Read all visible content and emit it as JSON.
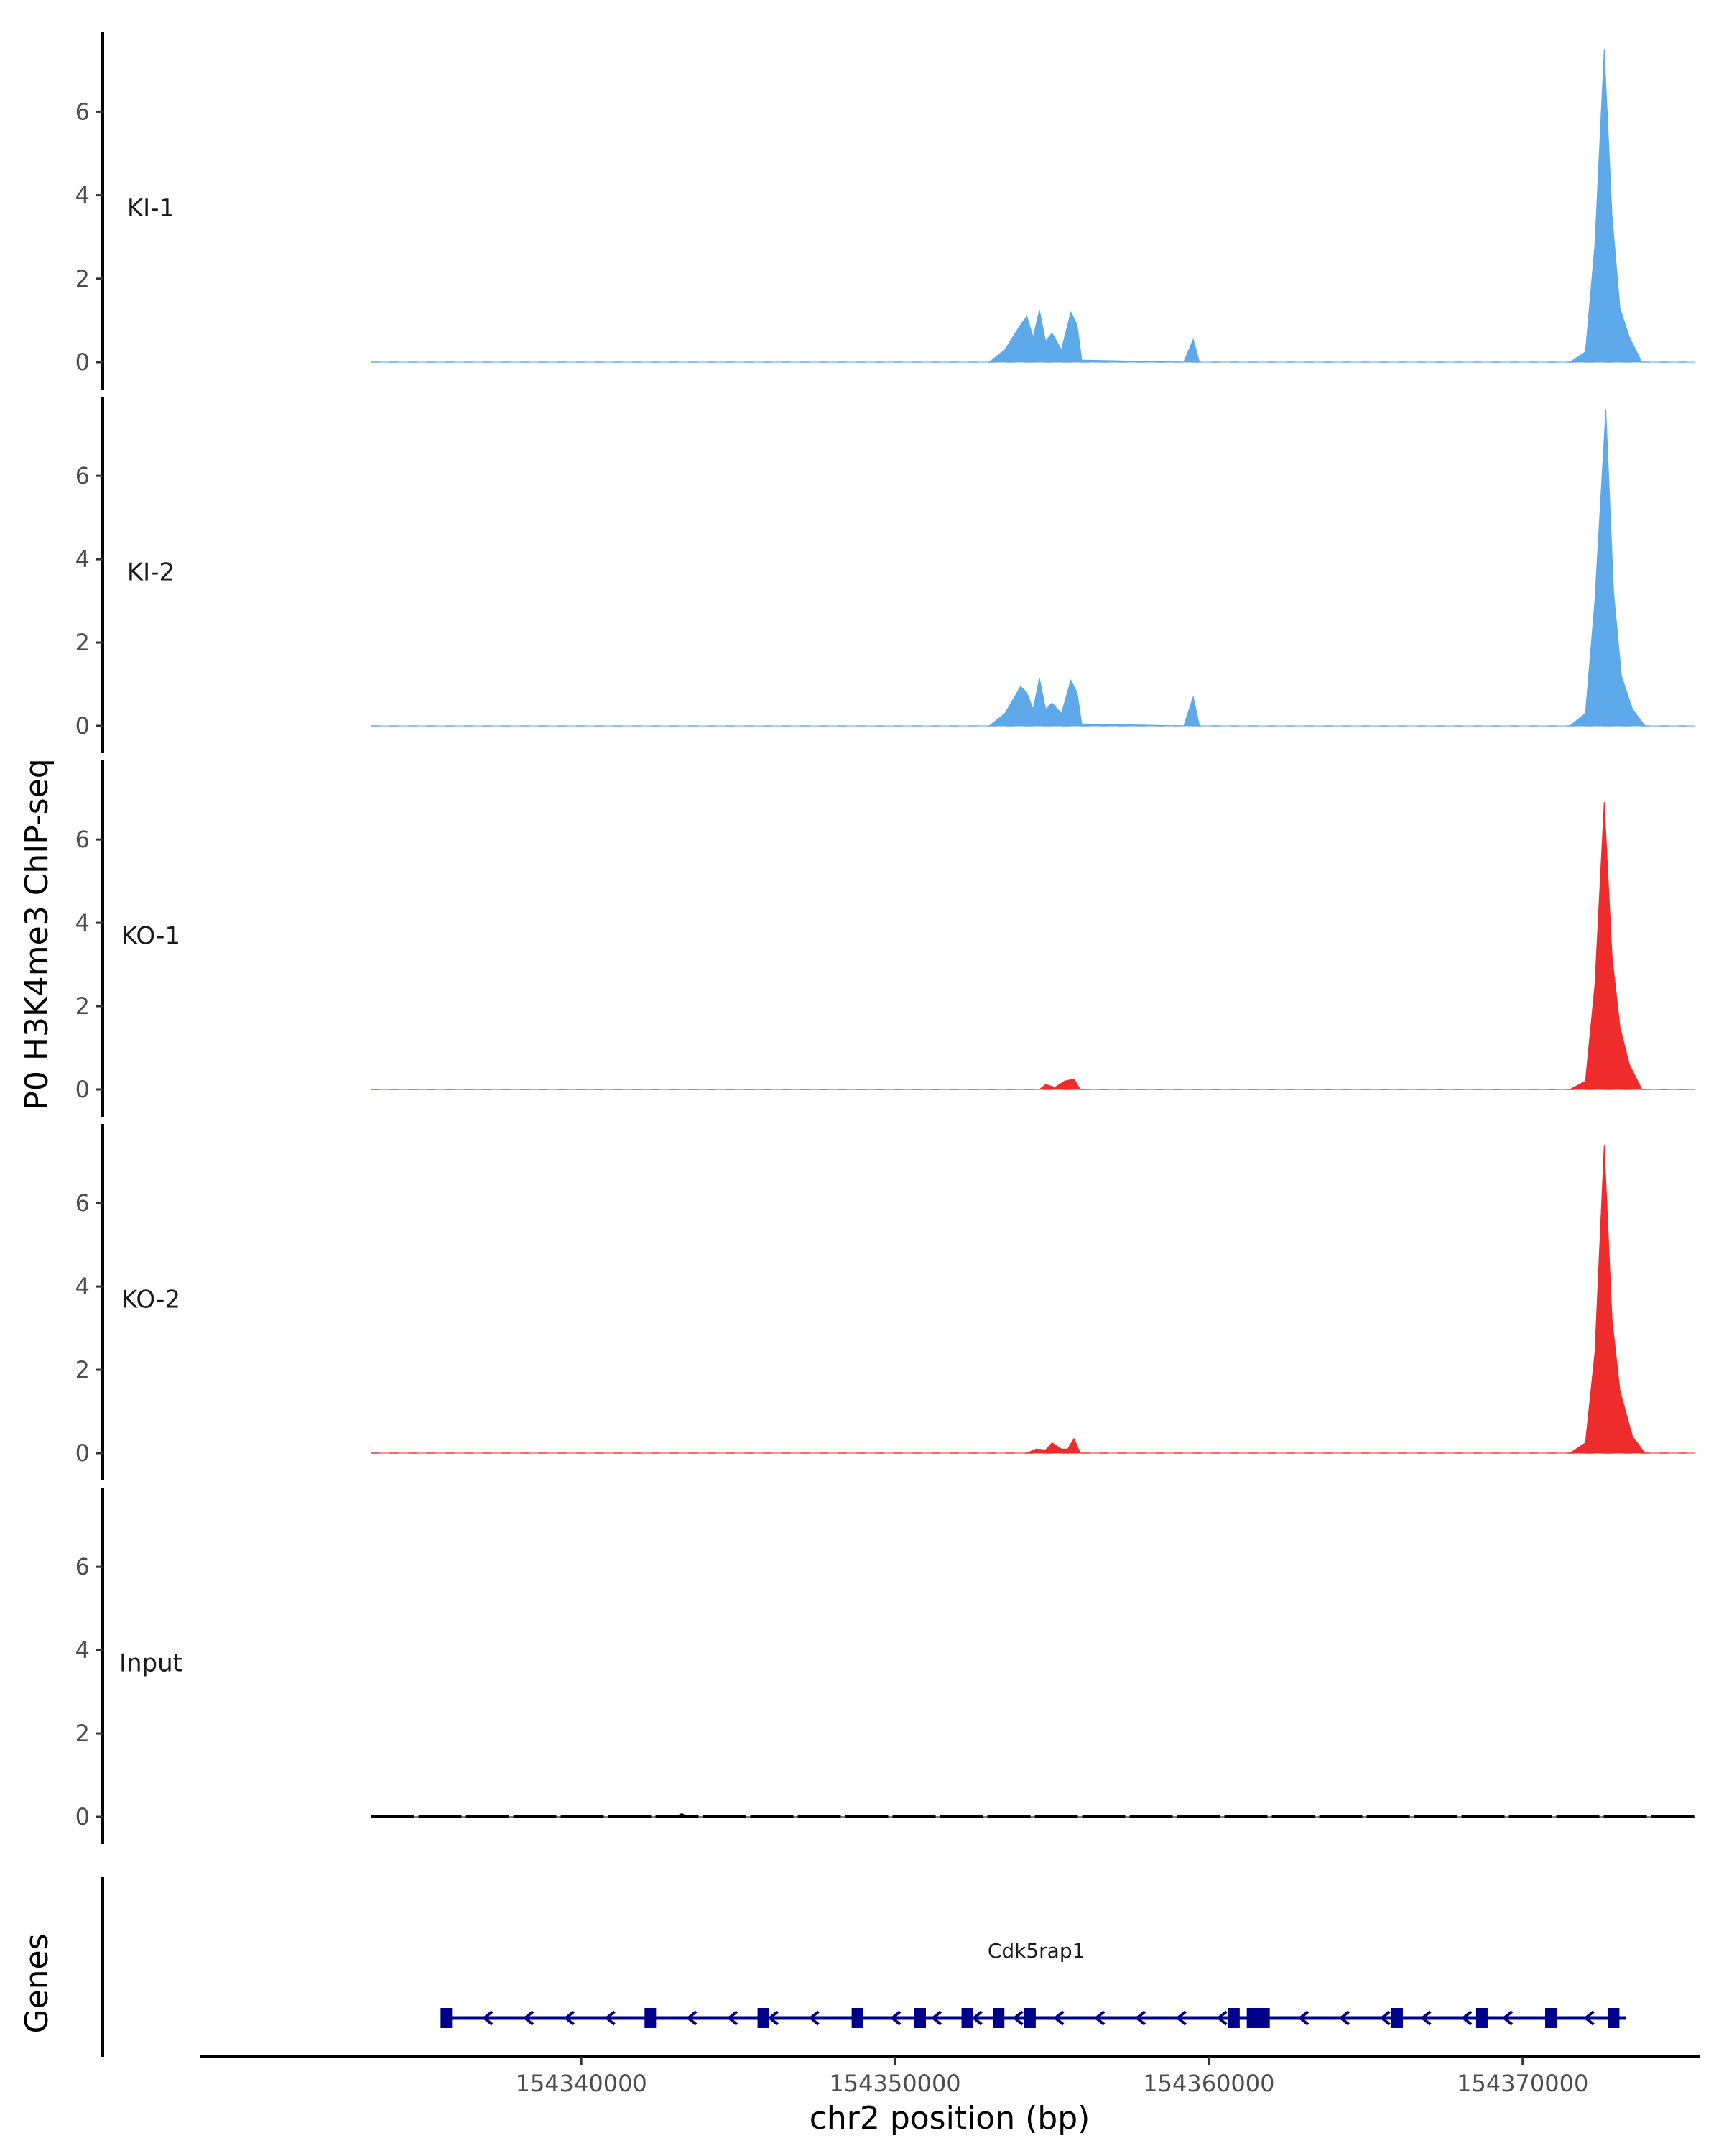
{
  "chart_data": {
    "type": "area",
    "ylabel": "P0 H3K4me3 ChIP-seq",
    "xlabel": "chr2 position (bp)",
    "x_ticks": [
      154340000,
      154350000,
      154360000,
      154370000
    ],
    "x_tick_labels": [
      "154340000",
      "154350000",
      "154360000",
      "154370000"
    ],
    "xlim": [
      154328000,
      154375500
    ],
    "ylim": [
      0,
      7.9
    ],
    "y_ticks": [
      0,
      2,
      4,
      6
    ],
    "y_tick_labels": [
      "0",
      "2",
      "4",
      "6"
    ],
    "series": [
      {
        "name": "KI-1",
        "color": "#5DA9E9",
        "points": [
          [
            154333300,
            0
          ],
          [
            154353000,
            0
          ],
          [
            154353500,
            0.3
          ],
          [
            154354000,
            0.9
          ],
          [
            154354200,
            1.1
          ],
          [
            154354400,
            0.6
          ],
          [
            154354600,
            1.25
          ],
          [
            154354800,
            0.5
          ],
          [
            154355000,
            0.7
          ],
          [
            154355300,
            0.3
          ],
          [
            154355600,
            1.2
          ],
          [
            154355800,
            0.9
          ],
          [
            154355950,
            0.05
          ],
          [
            154359200,
            0
          ],
          [
            154359500,
            0.55
          ],
          [
            154359700,
            0
          ],
          [
            154371500,
            0
          ],
          [
            154372000,
            0.25
          ],
          [
            154372300,
            2.8
          ],
          [
            154372600,
            7.5
          ],
          [
            154372850,
            3.5
          ],
          [
            154373100,
            1.3
          ],
          [
            154373400,
            0.6
          ],
          [
            154373800,
            0
          ],
          [
            154375500,
            0
          ]
        ]
      },
      {
        "name": "KI-2",
        "color": "#5DA9E9",
        "points": [
          [
            154333300,
            0
          ],
          [
            154353000,
            0
          ],
          [
            154353500,
            0.3
          ],
          [
            154354000,
            0.95
          ],
          [
            154354200,
            0.8
          ],
          [
            154354400,
            0.4
          ],
          [
            154354600,
            1.15
          ],
          [
            154354800,
            0.4
          ],
          [
            154355000,
            0.55
          ],
          [
            154355300,
            0.3
          ],
          [
            154355600,
            1.1
          ],
          [
            154355800,
            0.8
          ],
          [
            154355950,
            0.05
          ],
          [
            154359200,
            0
          ],
          [
            154359500,
            0.7
          ],
          [
            154359700,
            0
          ],
          [
            154371500,
            0
          ],
          [
            154372000,
            0.3
          ],
          [
            154372300,
            3
          ],
          [
            154372650,
            7.6
          ],
          [
            154372900,
            3.2
          ],
          [
            154373150,
            1.2
          ],
          [
            154373500,
            0.4
          ],
          [
            154373900,
            0
          ],
          [
            154375500,
            0
          ]
        ]
      },
      {
        "name": "KO-1",
        "color": "#EE2C2C",
        "points": [
          [
            154333300,
            0
          ],
          [
            154354600,
            0
          ],
          [
            154354800,
            0.12
          ],
          [
            154355100,
            0.05
          ],
          [
            154355400,
            0.2
          ],
          [
            154355700,
            0.25
          ],
          [
            154355900,
            0
          ],
          [
            154371500,
            0
          ],
          [
            154372000,
            0.2
          ],
          [
            154372300,
            2.5
          ],
          [
            154372600,
            6.9
          ],
          [
            154372850,
            3.2
          ],
          [
            154373100,
            1.5
          ],
          [
            154373400,
            0.6
          ],
          [
            154373800,
            0
          ],
          [
            154375500,
            0
          ]
        ]
      },
      {
        "name": "KO-2",
        "color": "#EE2C2C",
        "points": [
          [
            154333300,
            0
          ],
          [
            154354200,
            0
          ],
          [
            154354500,
            0.1
          ],
          [
            154354800,
            0.08
          ],
          [
            154355000,
            0.25
          ],
          [
            154355300,
            0.1
          ],
          [
            154355500,
            0.1
          ],
          [
            154355700,
            0.35
          ],
          [
            154355900,
            0
          ],
          [
            154371500,
            0
          ],
          [
            154372000,
            0.25
          ],
          [
            154372300,
            2.4
          ],
          [
            154372600,
            7.4
          ],
          [
            154372850,
            3.2
          ],
          [
            154373100,
            1.5
          ],
          [
            154373500,
            0.4
          ],
          [
            154373900,
            0
          ],
          [
            154375500,
            0
          ]
        ]
      },
      {
        "name": "Input",
        "color": "#000000",
        "points": [
          [
            154333300,
            0
          ],
          [
            154343000,
            0
          ],
          [
            154343200,
            0.08
          ],
          [
            154343400,
            0
          ],
          [
            154356000,
            0
          ],
          [
            154356200,
            0.03
          ],
          [
            154356400,
            0
          ],
          [
            154375500,
            0
          ]
        ]
      }
    ],
    "genes_track": {
      "label": "Genes",
      "gene_name": "Cdk5rap1",
      "start": 154335700,
      "end": 154373300,
      "strand": "-",
      "color": "#00008B",
      "exons": [
        154335700,
        154342200,
        154345800,
        154348800,
        154350800,
        154352300,
        154353300,
        154354300,
        154360800,
        154361600,
        154366000,
        154368700,
        154370900,
        154372900
      ]
    }
  }
}
